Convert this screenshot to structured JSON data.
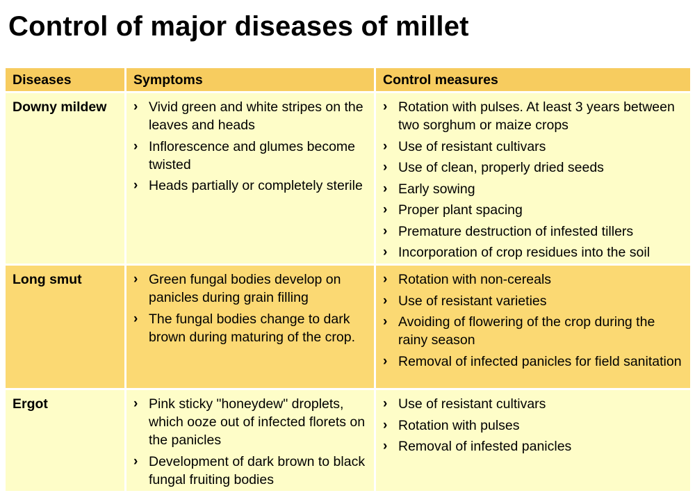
{
  "title": "Control of major diseases of millet",
  "table": {
    "headers": {
      "diseases": "Diseases",
      "symptoms": "Symptoms",
      "control": "Control measures"
    },
    "bullet": "›",
    "rows": [
      {
        "disease": "Downy mildew",
        "symptoms": [
          "Vivid green and white stripes on the leaves and heads",
          "Inflorescence and glumes become twisted",
          "Heads partially or completely sterile"
        ],
        "control": [
          "Rotation with pulses. At least 3 years between two sorghum or maize crops",
          "Use of resistant cultivars",
          "Use of clean, properly dried seeds",
          "Early sowing",
          "Proper plant spacing",
          "Premature destruction of infested tillers",
          "Incorporation of crop residues into the soil"
        ]
      },
      {
        "disease": "Long smut",
        "symptoms": [
          "Green fungal bodies develop on panicles during grain filling",
          "The fungal bodies change to dark brown during maturing of the crop."
        ],
        "control": [
          "Rotation with non-cereals",
          "Use of resistant varieties",
          "Avoiding of flowering of the crop during the rainy season",
          "Removal of infected panicles for field sanitation"
        ]
      },
      {
        "disease": "Ergot",
        "symptoms": [
          "Pink sticky \"honeydew\" droplets, which ooze out of infected florets on the panicles",
          "Development of dark brown to black fungal fruiting bodies"
        ],
        "control": [
          "Use of resistant cultivars",
          "Rotation with pulses",
          "Removal of infested panicles"
        ]
      }
    ]
  },
  "colors": {
    "header_bg": "#f7cc5f",
    "row_light_bg": "#fefdc8",
    "row_dark_bg": "#fbd973"
  }
}
